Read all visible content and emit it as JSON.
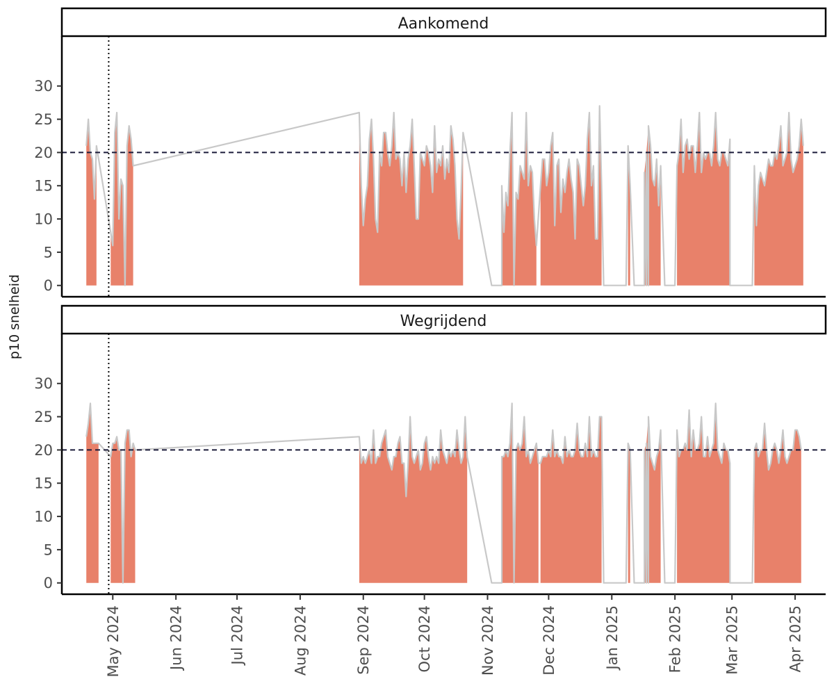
{
  "chart_data": {
    "type": "area",
    "ylabel": "p10 snelheid",
    "y_ticks": [
      0,
      5,
      10,
      15,
      20,
      25,
      30
    ],
    "ylim": [
      -1.7,
      37.5
    ],
    "x_ticks": [
      {
        "label": "May 2024",
        "date": "2024-05-01"
      },
      {
        "label": "Jun 2024",
        "date": "2024-06-01"
      },
      {
        "label": "Jul 2024",
        "date": "2024-07-01"
      },
      {
        "label": "Aug 2024",
        "date": "2024-08-01"
      },
      {
        "label": "Sep 2024",
        "date": "2024-09-01"
      },
      {
        "label": "Oct 2024",
        "date": "2024-10-01"
      },
      {
        "label": "Nov 2024",
        "date": "2024-11-01"
      },
      {
        "label": "Dec 2024",
        "date": "2024-12-01"
      },
      {
        "label": "Jan 2025",
        "date": "2025-01-01"
      },
      {
        "label": "Feb 2025",
        "date": "2025-02-01"
      },
      {
        "label": "Mar 2025",
        "date": "2025-03-01"
      },
      {
        "label": "Apr 2025",
        "date": "2025-04-01"
      }
    ],
    "xlim": [
      "2024-04-06",
      "2025-04-16"
    ],
    "reference_line_y": 20,
    "reference_date": "2024-04-29",
    "colors": {
      "fill": "#e8816a",
      "line": "#c8c8c8",
      "reference": "#1b1b3a",
      "frame": "#000000"
    },
    "panels": [
      {
        "title": "Aankomend",
        "segments": [
          {
            "start": "2024-04-18",
            "values": [
              21,
              25,
              20,
              19,
              13,
              21
            ]
          },
          {
            "start": "2024-04-30",
            "values": [
              8,
              6,
              23,
              26,
              10,
              16,
              15,
              0,
              21,
              24,
              22,
              18
            ]
          },
          {
            "start": "2024-08-30",
            "values": [
              26,
              15,
              9,
              13,
              15,
              22,
              25,
              19,
              10,
              8,
              20,
              18,
              23,
              23,
              20,
              18,
              21,
              26,
              19,
              20,
              19,
              15,
              20,
              14,
              19,
              21,
              25,
              18,
              10,
              10,
              20,
              19,
              18,
              21,
              20,
              18,
              14,
              24,
              17,
              19,
              18,
              21,
              16,
              19,
              17,
              24,
              22,
              18,
              10,
              7,
              14,
              23
            ]
          },
          {
            "start": "2024-11-03",
            "values": [
              0,
              0,
              0,
              0,
              0,
              0
            ]
          },
          {
            "start": "2024-11-08",
            "values": [
              15,
              8,
              14,
              12,
              20,
              26,
              0,
              14,
              13,
              18,
              17,
              16,
              26,
              15,
              18,
              17,
              10,
              6
            ]
          },
          {
            "start": "2024-11-27",
            "values": [
              15,
              19,
              19,
              15,
              17,
              21,
              23,
              9,
              18,
              19,
              11,
              16,
              14,
              17,
              19,
              16,
              14,
              7,
              19,
              18,
              15,
              12,
              15,
              22,
              26,
              15,
              18,
              7,
              7,
              27,
              15
            ]
          },
          {
            "start": "2024-12-28",
            "values": [
              0,
              0,
              0,
              0,
              0,
              0,
              0,
              0,
              0,
              0,
              0,
              0
            ]
          },
          {
            "start": "2025-01-09",
            "values": [
              21,
              15
            ]
          },
          {
            "start": "2025-01-12",
            "values": [
              0,
              0,
              0,
              0,
              0,
              0,
              0,
              0
            ]
          },
          {
            "start": "2025-01-17",
            "values": [
              17,
              20,
              24,
              21,
              16,
              15,
              19,
              12,
              18
            ]
          },
          {
            "start": "2025-01-27",
            "values": [
              0,
              0,
              0,
              0,
              0,
              0
            ]
          },
          {
            "start": "2025-02-02",
            "values": [
              18,
              20,
              25,
              17,
              21,
              22,
              19,
              21,
              21,
              17,
              21,
              26,
              17,
              20,
              19,
              20,
              20,
              18,
              21,
              26,
              19,
              18,
              20,
              20,
              19,
              18,
              22
            ]
          },
          {
            "start": "2025-02-28",
            "values": [
              0,
              0,
              0,
              0,
              0,
              0,
              0,
              0,
              0,
              0,
              0,
              0
            ]
          },
          {
            "start": "2025-03-12",
            "values": [
              18,
              9,
              15,
              17,
              16,
              15,
              17,
              19,
              18,
              18,
              20,
              19,
              21,
              24,
              18,
              19,
              20,
              26,
              19,
              17,
              18,
              19,
              21,
              25,
              21
            ]
          }
        ]
      },
      {
        "title": "Wegrijdend",
        "segments": [
          {
            "start": "2024-04-18",
            "values": [
              22,
              24,
              27,
              21,
              21,
              21,
              21
            ]
          },
          {
            "start": "2024-04-30",
            "values": [
              19,
              21,
              21,
              22,
              20,
              20,
              0,
              21,
              23,
              23,
              19,
              21,
              20
            ]
          },
          {
            "start": "2024-08-30",
            "values": [
              22,
              18,
              19,
              18,
              19,
              20,
              18,
              23,
              18,
              19,
              19,
              21,
              22,
              23,
              19,
              18,
              17,
              19,
              19,
              21,
              22,
              18,
              18,
              13,
              18,
              25,
              19,
              18,
              19,
              20,
              17,
              18,
              21,
              22,
              19,
              17,
              19,
              18,
              19,
              18,
              23,
              20,
              19,
              18,
              20,
              19,
              20,
              19,
              23,
              20,
              18,
              19,
              25,
              19
            ]
          },
          {
            "start": "2024-11-03",
            "values": [
              0,
              0,
              0,
              0,
              0,
              0
            ]
          },
          {
            "start": "2024-11-08",
            "values": [
              19,
              19,
              20,
              19,
              21,
              27,
              0,
              20,
              21,
              20,
              21,
              25,
              19,
              20,
              18,
              19,
              20,
              21,
              18
            ]
          },
          {
            "start": "2024-11-27",
            "values": [
              18,
              19,
              19,
              19,
              20,
              19,
              23,
              19,
              20,
              19,
              19,
              18,
              22,
              19,
              20,
              19,
              19,
              20,
              24,
              20,
              19,
              19,
              21,
              19,
              25,
              19,
              20,
              19,
              19,
              25,
              25
            ]
          },
          {
            "start": "2024-12-28",
            "values": [
              0,
              0,
              0,
              0,
              0,
              0,
              0,
              0,
              0,
              0,
              0,
              0
            ]
          },
          {
            "start": "2025-01-09",
            "values": [
              21,
              20
            ]
          },
          {
            "start": "2025-01-12",
            "values": [
              0,
              0,
              0,
              0,
              0,
              0,
              0,
              0
            ]
          },
          {
            "start": "2025-01-17",
            "values": [
              20,
              21,
              25,
              19,
              18,
              17,
              19,
              20,
              23
            ]
          },
          {
            "start": "2025-01-27",
            "values": [
              0,
              0,
              0,
              0,
              0,
              0
            ]
          },
          {
            "start": "2025-02-02",
            "values": [
              23,
              19,
              20,
              20,
              21,
              20,
              26,
              19,
              23,
              20,
              20,
              21,
              25,
              19,
              19,
              22,
              19,
              20,
              21,
              27,
              20,
              19,
              18,
              21,
              20,
              20,
              18
            ]
          },
          {
            "start": "2025-02-28",
            "values": [
              0,
              0,
              0,
              0,
              0,
              0,
              0,
              0,
              0,
              0,
              0,
              0
            ]
          },
          {
            "start": "2025-03-12",
            "values": [
              20,
              21,
              19,
              20,
              20,
              24,
              20,
              17,
              18,
              20,
              21,
              20,
              18,
              20,
              23,
              19,
              18,
              19,
              20,
              20,
              23,
              23,
              22,
              20
            ]
          }
        ]
      }
    ]
  }
}
